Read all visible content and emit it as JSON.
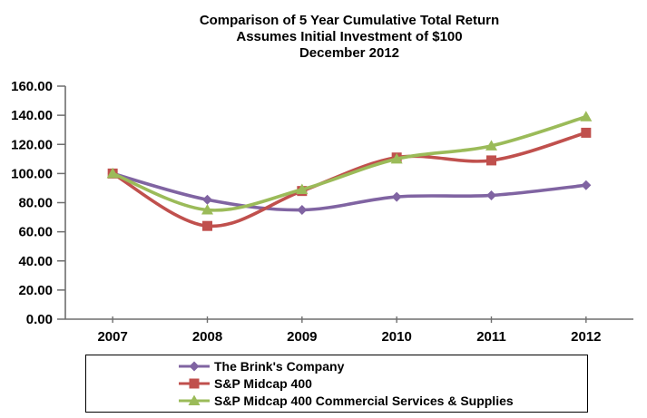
{
  "chart_data": {
    "type": "line",
    "title": "Comparison of 5 Year Cumulative Total Return",
    "subtitle1": "Assumes Initial Investment of $100",
    "subtitle2": "December 2012",
    "x": [
      "2007",
      "2008",
      "2009",
      "2010",
      "2011",
      "2012"
    ],
    "series": [
      {
        "name": "The Brink's Company",
        "marker": "diamond",
        "color": "#8064A2",
        "values": [
          100,
          82,
          75,
          84,
          85,
          92
        ]
      },
      {
        "name": "S&P Midcap 400",
        "marker": "square",
        "color": "#C0504D",
        "values": [
          100,
          64,
          88,
          111,
          109,
          128
        ]
      },
      {
        "name": "S&P Midcap 400 Commercial Services & Supplies",
        "marker": "triangle",
        "color": "#9BBB59",
        "values": [
          100,
          75,
          89,
          110,
          119,
          139
        ]
      }
    ],
    "ylim": [
      0,
      160
    ],
    "y_tick_step": 20,
    "y_tick_labels": [
      "0.00",
      "20.00",
      "40.00",
      "60.00",
      "80.00",
      "100.00",
      "120.00",
      "140.00",
      "160.00"
    ],
    "grid": false,
    "smoothed_lines": true,
    "legend_position": "bottom",
    "axis_color": "#6e6e6e"
  }
}
